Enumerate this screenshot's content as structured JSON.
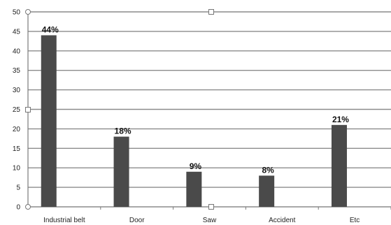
{
  "chart_data": {
    "type": "bar",
    "categories": [
      "Industrial belt",
      "Door",
      "Saw",
      "Accident",
      "Etc"
    ],
    "values": [
      44,
      18,
      9,
      8,
      21
    ],
    "data_labels": [
      "44%",
      "18%",
      "9%",
      "8%",
      "21%"
    ],
    "ylim": [
      0,
      50
    ],
    "yticks": [
      0,
      5,
      10,
      15,
      20,
      25,
      30,
      35,
      40,
      45,
      50
    ],
    "grid": true,
    "bar_color": "#4a4a4a",
    "grid_color": "#8c8c8c",
    "legend": "none"
  }
}
